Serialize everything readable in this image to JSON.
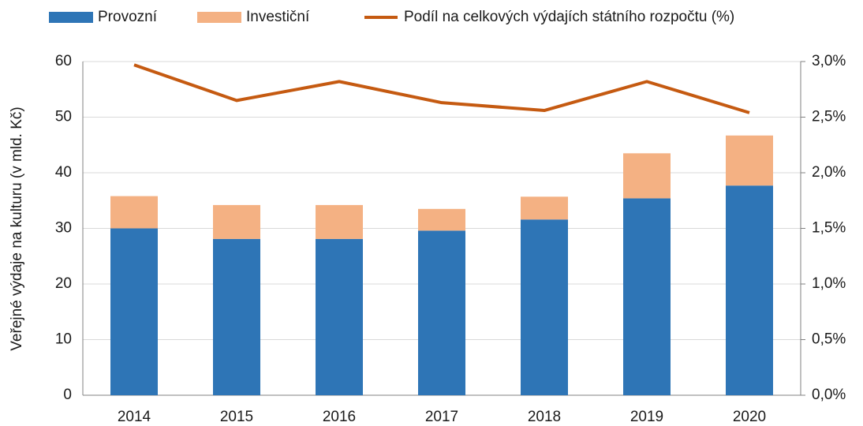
{
  "chart_data": {
    "type": "bar",
    "stacked": true,
    "y_label": "Veřejné výdaje na kulturu (v mld. Kč)",
    "categories": [
      "2014",
      "2015",
      "2016",
      "2017",
      "2018",
      "2019",
      "2020"
    ],
    "series": [
      {
        "name": "Provozní",
        "color": "#2e75b6",
        "values": [
          30.0,
          28.1,
          28.1,
          29.6,
          31.6,
          35.4,
          37.7
        ]
      },
      {
        "name": "Investiční",
        "color": "#f4b183",
        "values": [
          5.8,
          6.1,
          6.1,
          3.9,
          4.1,
          8.1,
          9.0
        ]
      },
      {
        "name": "Podíl na celkových výdajích státního rozpočtu (%)",
        "color": "#c55a11",
        "type": "line",
        "axis": "y2",
        "values": [
          2.97,
          2.65,
          2.82,
          2.63,
          2.56,
          2.82,
          2.54
        ]
      }
    ],
    "ylim": [
      0,
      60
    ],
    "yticks": [
      0,
      10,
      20,
      30,
      40,
      50,
      60
    ],
    "y2lim": [
      0,
      3
    ],
    "y2ticks": [
      {
        "value": 0,
        "label": "0,0%"
      },
      {
        "value": 0.5,
        "label": "0,5%"
      },
      {
        "value": 1,
        "label": "1,0%"
      },
      {
        "value": 1.5,
        "label": "1,5%"
      },
      {
        "value": 2,
        "label": "2,0%"
      },
      {
        "value": 2.5,
        "label": "2,5%"
      },
      {
        "value": 3,
        "label": "3,0%"
      }
    ],
    "grid": true,
    "legend": "top"
  }
}
